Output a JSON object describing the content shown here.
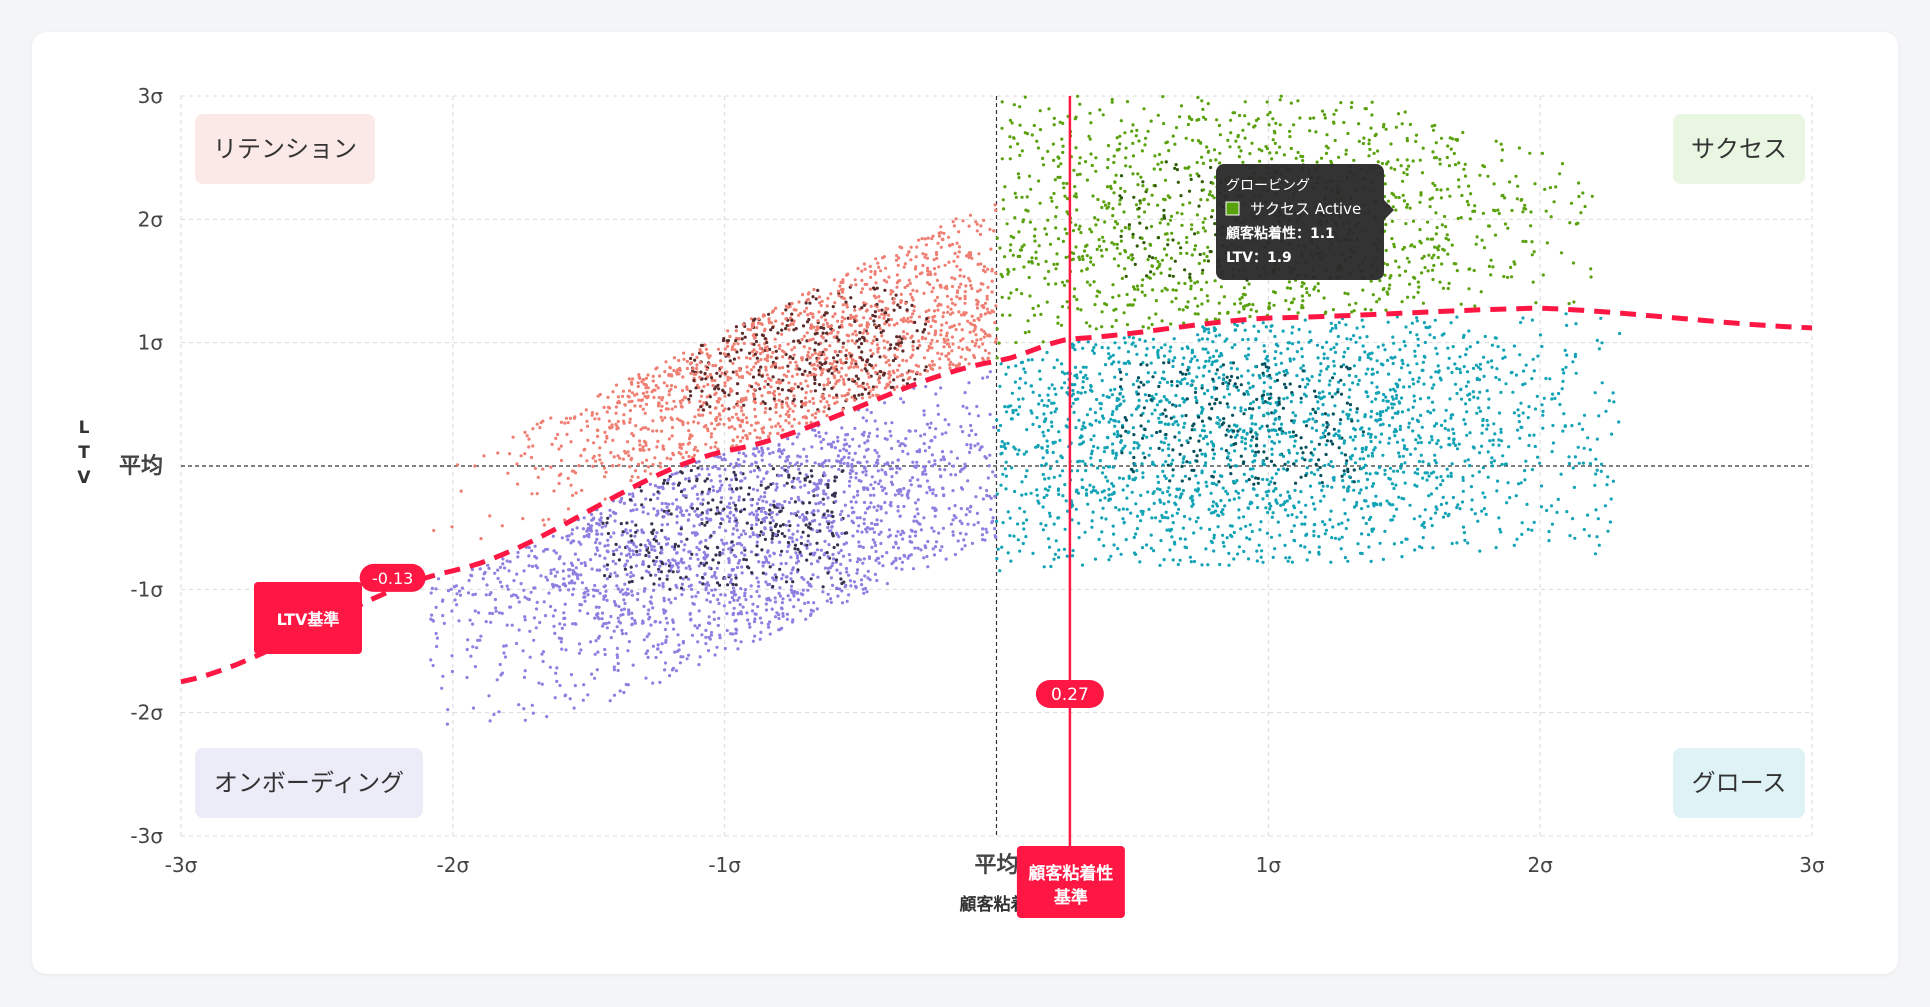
{
  "chart_data": {
    "type": "scatter",
    "xlabel": "顧客粘着性",
    "ylabel": "LTV",
    "xlim": [
      -3,
      3
    ],
    "ylim": [
      -3,
      3
    ],
    "x_ticks": [
      {
        "value": -3,
        "label": "-3σ"
      },
      {
        "value": -2,
        "label": "-2σ"
      },
      {
        "value": -1,
        "label": "-1σ"
      },
      {
        "value": 0,
        "label": "平均"
      },
      {
        "value": 1,
        "label": "1σ"
      },
      {
        "value": 2,
        "label": "2σ"
      },
      {
        "value": 3,
        "label": "3σ"
      }
    ],
    "y_ticks": [
      {
        "value": 3,
        "label": "3σ"
      },
      {
        "value": 2,
        "label": "2σ"
      },
      {
        "value": 1,
        "label": "1σ"
      },
      {
        "value": 0,
        "label": "平均"
      },
      {
        "value": -1,
        "label": "-1σ"
      },
      {
        "value": -2,
        "label": "-2σ"
      },
      {
        "value": -3,
        "label": "-3σ"
      }
    ],
    "grid": true,
    "quadrants": [
      {
        "name": "リテンション",
        "position": "top-left",
        "color": "#fbe9e7"
      },
      {
        "name": "サクセス",
        "position": "top-right",
        "color": "#e9f7e2"
      },
      {
        "name": "オンボーディング",
        "position": "bottom-left",
        "color": "#ecebf8"
      },
      {
        "name": "グロース",
        "position": "bottom-right",
        "color": "#dff3f6"
      }
    ],
    "series": [
      {
        "name": "リテンション",
        "color": "#ef7f73",
        "active_color": "#5e2b2b",
        "x_range": [
          -2.1,
          0
        ],
        "density_center": [
          -0.7,
          0.95
        ],
        "point_count": 1800,
        "approx_shape": "band above LTV threshold curve, upper edge rising from about 0.1 at x=-2 to about 2.2 at x=0"
      },
      {
        "name": "サクセス",
        "color": "#5aa10e",
        "active_color": "#2f5a06",
        "x_range": [
          0,
          2.2
        ],
        "density_center": [
          0.9,
          2.0
        ],
        "point_count": 1400,
        "approx_shape": "band above LTV threshold curve, up to about 3.0"
      },
      {
        "name": "オンボーディング",
        "color": "#8f7fe0",
        "active_color": "#37304f",
        "x_range": [
          -2.1,
          0
        ],
        "density_center": [
          -1.0,
          -0.5
        ],
        "point_count": 2200,
        "approx_shape": "band below LTV threshold curve, lower edge from about -2.1 at x=-1.6 to about -0.6 at x=0"
      },
      {
        "name": "グロース",
        "color": "#13a3b6",
        "active_color": "#064f5c",
        "x_range": [
          0,
          2.3
        ],
        "density_center": [
          0.9,
          0.35
        ],
        "point_count": 2300,
        "approx_shape": "band below LTV threshold curve, down to about -0.85"
      }
    ],
    "ltv_threshold_curve": {
      "label": "LTV基準",
      "value_label": "-0.13",
      "value_label_x": -2.1,
      "color": "#ff1744",
      "style": "dashed",
      "points": [
        [
          -3,
          -1.75
        ],
        [
          -2,
          -0.85
        ],
        [
          -1,
          0.12
        ],
        [
          0,
          0.85
        ],
        [
          0.27,
          1.03
        ],
        [
          1,
          1.2
        ],
        [
          2,
          1.28
        ],
        [
          3,
          1.12
        ]
      ]
    },
    "stickiness_threshold": {
      "label": "顧客粘着性\n基準",
      "value_label": "0.27",
      "value": 0.27,
      "color": "#ff1744"
    },
    "tooltip": {
      "title": "グロービング",
      "series_name": "サクセス Active",
      "swatch_color": "#5aa10e",
      "line1": "顧客粘着性：1.1",
      "line2": "LTV：1.9",
      "x": 1.1,
      "y": 1.9
    }
  }
}
